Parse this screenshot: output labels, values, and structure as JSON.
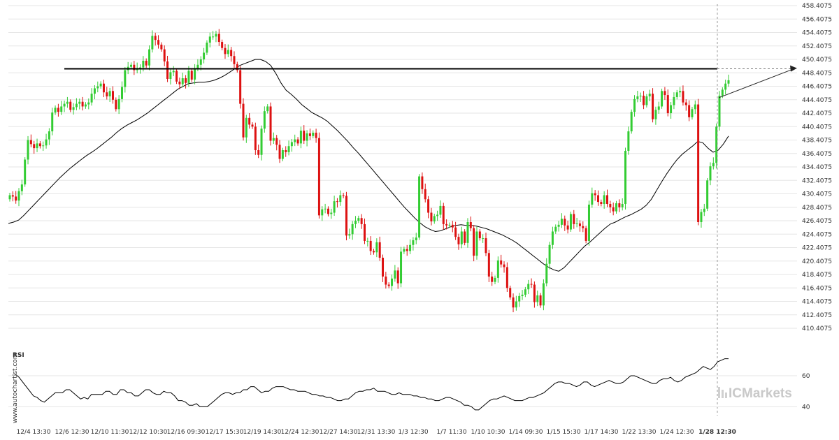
{
  "watermark": "www.autochartist.com",
  "brand": "ICMarkets",
  "rsi_label": "RSI",
  "colors": {
    "up": "#33cc33",
    "down": "#dd1111",
    "line": "#000000",
    "grid": "#e6e6e6"
  },
  "chart_data": [
    {
      "type": "candlestick",
      "title": "",
      "y_ticks": [
        "458.4075",
        "456.4075",
        "454.4075",
        "452.4075",
        "450.4075",
        "448.4075",
        "446.4075",
        "444.4075",
        "442.4075",
        "440.4075",
        "438.4075",
        "436.4075",
        "434.4075",
        "432.4075",
        "430.4075",
        "428.4075",
        "426.4075",
        "424.4075",
        "422.4075",
        "420.4075",
        "418.4075",
        "416.4075",
        "414.4075",
        "412.4075",
        "410.4075"
      ],
      "ylim": [
        409.6,
        458.6
      ],
      "x_ticks": [
        "12/4 13:30",
        "12/6 12:30",
        "12/10 11:30",
        "12/12 10:30",
        "12/16 09:30",
        "12/17 15:30",
        "12/19 14:30",
        "12/24 12:30",
        "12/27 14:30",
        "12/31 13:30",
        "1/3 12:30",
        "1/7 11:30",
        "1/10 10:30",
        "1/14 09:30",
        "1/15 15:30",
        "1/17 14:30",
        "1/22 13:30",
        "1/24 12:30",
        "1/28 12:30"
      ],
      "highlight_x_tick": "1/28 12:30",
      "grid": true,
      "resistance_level": 449.0,
      "candle_closes": [
        430.2,
        430.0,
        429.4,
        430.8,
        431.8,
        435.5,
        438.4,
        437.8,
        437.2,
        437.9,
        437.5,
        437.6,
        438.5,
        439.7,
        442.5,
        443.2,
        442.6,
        443.4,
        443.8,
        444.1,
        442.9,
        443.3,
        443.8,
        444.1,
        443.4,
        443.7,
        444.0,
        445.3,
        446.1,
        446.4,
        446.8,
        445.5,
        444.9,
        445.7,
        444.4,
        443.0,
        444.5,
        446.3,
        448.8,
        449.3,
        449.6,
        448.8,
        449.1,
        449.2,
        450.2,
        449.5,
        451.9,
        453.9,
        453.3,
        452.6,
        451.9,
        450.1,
        447.5,
        448.5,
        448.7,
        447.1,
        446.7,
        447.6,
        446.9,
        448.7,
        447.4,
        449.1,
        449.6,
        450.4,
        451.4,
        452.9,
        453.8,
        453.8,
        454.2,
        453.0,
        452.1,
        451.2,
        451.8,
        450.9,
        449.7,
        448.8,
        443.8,
        438.8,
        441.7,
        440.7,
        440.4,
        436.9,
        436.2,
        440.1,
        442.7,
        443.4,
        438.3,
        438.7,
        437.7,
        435.6,
        436.9,
        436.6,
        437.5,
        438.1,
        438.5,
        437.9,
        439.8,
        438.3,
        439.4,
        439.0,
        439.5,
        438.7,
        427.2,
        428.1,
        428.2,
        427.4,
        427.6,
        429.3,
        429.2,
        430.2,
        430.1,
        424.2,
        424.4,
        425.9,
        426.4,
        426.8,
        425.9,
        423.4,
        423.4,
        421.9,
        421.7,
        423.2,
        420.9,
        418.1,
        416.9,
        416.7,
        417.8,
        419.0,
        417.1,
        421.8,
        422.2,
        421.9,
        422.8,
        423.5,
        423.9,
        433.0,
        431.1,
        429.6,
        427.6,
        426.3,
        427.1,
        427.3,
        428.6,
        425.9,
        425.7,
        425.8,
        425.4,
        424.0,
        422.9,
        424.8,
        423.1,
        426.2,
        425.3,
        421.2,
        424.8,
        423.8,
        423.8,
        421.6,
        418.1,
        417.3,
        417.9,
        420.5,
        419.9,
        419.5,
        416.4,
        415.0,
        413.5,
        414.4,
        415.2,
        415.4,
        416.2,
        417.0,
        416.9,
        414.3,
        415.3,
        413.8,
        417.1,
        420.0,
        422.8,
        424.8,
        425.5,
        425.8,
        426.7,
        425.7,
        425.1,
        427.4,
        425.9,
        426.0,
        425.6,
        425.3,
        423.4,
        428.8,
        430.5,
        430.2,
        429.2,
        428.9,
        430.2,
        428.9,
        428.4,
        427.8,
        429.0,
        428.4,
        428.9,
        436.8,
        439.7,
        442.6,
        444.5,
        444.9,
        445.0,
        443.6,
        444.9,
        445.3,
        441.5,
        442.9,
        443.4,
        445.7,
        445.1,
        442.4,
        443.6,
        444.8,
        445.5,
        445.7,
        444.0,
        443.6,
        441.8,
        443.0,
        443.7,
        426.2,
        427.7,
        428.2,
        432.4,
        434.5,
        435.0,
        440.4,
        445.0,
        445.9,
        446.8,
        447.3
      ],
      "moving_average": [
        426.0,
        426.2,
        426.5,
        427.2,
        428.0,
        428.8,
        429.6,
        430.4,
        431.2,
        432.0,
        432.8,
        433.5,
        434.2,
        434.8,
        435.4,
        436.0,
        436.5,
        437.0,
        437.6,
        438.2,
        438.8,
        439.5,
        440.1,
        440.6,
        441.0,
        441.4,
        441.9,
        442.4,
        443.0,
        443.6,
        444.2,
        444.8,
        445.4,
        446.0,
        446.4,
        446.8,
        446.9,
        447.0,
        447.0,
        447.1,
        447.3,
        447.6,
        448.0,
        448.5,
        449.0,
        449.5,
        449.8,
        450.1,
        450.4,
        450.4,
        450.1,
        449.5,
        448.3,
        446.9,
        445.8,
        445.2,
        444.5,
        443.7,
        443.1,
        442.5,
        442.1,
        441.7,
        441.2,
        440.5,
        439.8,
        439.0,
        438.2,
        437.3,
        436.5,
        435.6,
        434.7,
        433.8,
        432.9,
        432.0,
        431.1,
        430.2,
        429.3,
        428.4,
        427.6,
        426.8,
        426.1,
        425.5,
        425.1,
        424.8,
        424.9,
        425.2,
        425.5,
        425.7,
        425.8,
        425.7,
        425.7,
        425.6,
        425.4,
        425.2,
        424.9,
        424.6,
        424.3,
        423.9,
        423.5,
        423.0,
        422.4,
        421.8,
        421.2,
        420.6,
        420.0,
        419.5,
        419.1,
        418.9,
        419.4,
        420.2,
        421.0,
        421.8,
        422.6,
        423.2,
        423.9,
        424.6,
        425.3,
        425.9,
        426.2,
        426.6,
        427.0,
        427.3,
        427.7,
        428.1,
        428.7,
        429.6,
        430.9,
        432.2,
        433.4,
        434.5,
        435.5,
        436.3,
        436.9,
        437.5,
        438.2,
        438.0,
        437.2,
        436.6,
        436.9,
        437.8,
        439.0
      ],
      "trend_arrow": {
        "from": 444.7,
        "to": 449.1
      }
    },
    {
      "type": "line",
      "title": "RSI",
      "y_ticks": [
        "60",
        "40"
      ],
      "ylim": [
        33,
        78
      ],
      "values": [
        61,
        59,
        56,
        53,
        50,
        47,
        46,
        44,
        43,
        45,
        47,
        49,
        49,
        49,
        51,
        51,
        49,
        47,
        45,
        46,
        45,
        48,
        48,
        48,
        48,
        50,
        50,
        48,
        48,
        51,
        51,
        49,
        49,
        47,
        47,
        49,
        51,
        51,
        49,
        48,
        48,
        50,
        49,
        49,
        47,
        44,
        44,
        43,
        41,
        41,
        42,
        40,
        40,
        40,
        42,
        44,
        46,
        48,
        49,
        49,
        48,
        49,
        49,
        51,
        51,
        53,
        53,
        51,
        49,
        50,
        50,
        52,
        53,
        53,
        53,
        52,
        51,
        51,
        50,
        50,
        50,
        49,
        48,
        48,
        47,
        47,
        46,
        46,
        45,
        44,
        44,
        45,
        45,
        47,
        49,
        50,
        50,
        51,
        51,
        52,
        50,
        50,
        50,
        49,
        48,
        48,
        49,
        48,
        48,
        48,
        47,
        47,
        46,
        46,
        45,
        45,
        44,
        44,
        45,
        46,
        46,
        45,
        44,
        43,
        41,
        41,
        40,
        38,
        38,
        40,
        42,
        44,
        45,
        45,
        46,
        47,
        46,
        45,
        44,
        44,
        44,
        45,
        46,
        46,
        47,
        48,
        49,
        51,
        53,
        55,
        56,
        56,
        55,
        55,
        54,
        53,
        54,
        56,
        56,
        54,
        53,
        54,
        55,
        56,
        57,
        56,
        55,
        55,
        56,
        58,
        60,
        60,
        59,
        58,
        57,
        56,
        55,
        55,
        57,
        58,
        58,
        59,
        57,
        56,
        57,
        59,
        60,
        61,
        62,
        64,
        66,
        65,
        64,
        66,
        69,
        70,
        71,
        71
      ]
    }
  ]
}
